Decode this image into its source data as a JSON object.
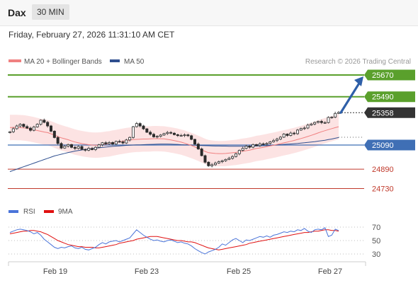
{
  "header": {
    "symbol": "Dax",
    "timeframe": "30 MIN",
    "timestamp": "Friday, February 27, 2026 11:31:10 AM CET"
  },
  "chart_data": [
    {
      "type": "line",
      "panel": "price",
      "legend": [
        {
          "name": "MA 20 + Bollinger Bands",
          "color": "#f08080"
        },
        {
          "name": "MA 50",
          "color": "#2f4f8f"
        }
      ],
      "credit": "Research © 2026 Trading Central",
      "ylim": [
        24650,
        25720
      ],
      "x_ticks": [
        "Feb 19",
        "Feb 23",
        "Feb 25",
        "Feb 27"
      ],
      "levels": [
        {
          "value": 25670,
          "label": "25670",
          "kind": "resistance",
          "color": "#5aa02c"
        },
        {
          "value": 25490,
          "label": "25490",
          "kind": "resistance",
          "color": "#5aa02c"
        },
        {
          "value": 25358,
          "label": "25358",
          "kind": "last",
          "color": "#333333"
        },
        {
          "value": 25090,
          "label": "25090",
          "kind": "pivot",
          "color": "#3f6fb5"
        },
        {
          "value": 24890,
          "label": "24890",
          "kind": "support",
          "color": "#c0392b"
        },
        {
          "value": 24730,
          "label": "24730",
          "kind": "support",
          "color": "#c0392b"
        }
      ],
      "last_price": 25358,
      "target": 25670,
      "closes": [
        25200,
        25225,
        25248,
        25262,
        25243,
        25230,
        25212,
        25240,
        25262,
        25296,
        25278,
        25248,
        25205,
        25152,
        25103,
        25065,
        25080,
        25094,
        25071,
        25062,
        25078,
        25054,
        25047,
        25062,
        25052,
        25071,
        25092,
        25109,
        25100,
        25111,
        25098,
        25120,
        25116,
        25107,
        25132,
        25153,
        25242,
        25268,
        25248,
        25224,
        25196,
        25179,
        25158,
        25162,
        25173,
        25185,
        25194,
        25188,
        25176,
        25168,
        25169,
        25174,
        25167,
        25137,
        25098,
        25058,
        25002,
        24948,
        24918,
        24927,
        24941,
        24952,
        24960,
        24971,
        24980,
        24995,
        25018,
        25046,
        25062,
        25081,
        25072,
        25094,
        25085,
        25100,
        25096,
        25104,
        25117,
        25127,
        25139,
        25155,
        25181,
        25169,
        25189,
        25184,
        25214,
        25227,
        25231,
        25255,
        25264,
        25277,
        25286,
        25276,
        25276,
        25319,
        25321,
        25352,
        25360
      ],
      "ma20": [
        25235,
        25236,
        25235,
        25234,
        25232,
        25228,
        25223,
        25217,
        25210,
        25204,
        25198,
        25193,
        25183,
        25172,
        25160,
        25150,
        25142,
        25134,
        25124,
        25115,
        25108,
        25102,
        25097,
        25093,
        25090,
        25089,
        25090,
        25093,
        25097,
        25100,
        25106,
        25111,
        25117,
        25122,
        25127,
        25131,
        25135,
        25137,
        25138,
        25140,
        25140,
        25141,
        25143,
        25143,
        25142,
        25141,
        25137,
        25132,
        25127,
        25121,
        25114,
        25106,
        25096,
        25086,
        25075,
        25063,
        25050,
        25037,
        25027,
        25023,
        25020,
        25019,
        25019,
        25020,
        25023,
        25026,
        25029,
        25034,
        25039,
        25043,
        25048,
        25055,
        25062,
        25066,
        25071,
        25077,
        25083,
        25089,
        25095,
        25102,
        25108,
        25114,
        25121,
        25128,
        25136,
        25144,
        25152,
        25161,
        25170,
        25180,
        25190,
        25200,
        25209,
        25218,
        25226,
        25234,
        25242
      ],
      "ma50": [
        24870,
        24880,
        24890,
        24900,
        24910,
        24920,
        24930,
        24940,
        24950,
        24960,
        24970,
        24980,
        24990,
        25000,
        25007,
        25014,
        25021,
        25028,
        25034,
        25040,
        25045,
        25049,
        25053,
        25057,
        25061,
        25064,
        25067,
        25070,
        25073,
        25076,
        25079,
        25081,
        25083,
        25085,
        25087,
        25089,
        25090,
        25091,
        25092,
        25093,
        25094,
        25095,
        25096,
        25097,
        25098,
        25098,
        25098,
        25097,
        25096,
        25095,
        25093,
        25092,
        25091,
        25090,
        25088,
        25087,
        25086,
        25085,
        25084,
        25083,
        25082,
        25082,
        25081,
        25081,
        25080,
        25080,
        25080,
        25080,
        25080,
        25080,
        25081,
        25081,
        25082,
        25083,
        25084,
        25085,
        25087,
        25089,
        25091,
        25093,
        25095,
        25097,
        25099,
        25101,
        25103,
        25106,
        25109,
        25112,
        25115,
        25118,
        25122,
        25126,
        25130,
        25135,
        25140,
        25146,
        25152
      ]
    },
    {
      "type": "line",
      "panel": "oscillator",
      "legend": [
        {
          "name": "RSI",
          "color": "#4a74d9"
        },
        {
          "name": "9MA",
          "color": "#e01010"
        }
      ],
      "ylim": [
        20,
        80
      ],
      "y_ticks": [
        70,
        50,
        30
      ],
      "rsi": [
        62,
        64,
        66,
        67,
        66,
        65,
        63,
        60,
        62,
        58,
        52,
        48,
        44,
        40,
        38,
        40,
        39,
        41,
        42,
        39,
        38,
        40,
        37,
        36,
        38,
        40,
        44,
        47,
        45,
        48,
        49,
        50,
        48,
        50,
        52,
        54,
        60,
        66,
        62,
        58,
        55,
        52,
        50,
        51,
        49,
        48,
        50,
        51,
        49,
        47,
        48,
        46,
        45,
        42,
        38,
        35,
        32,
        30,
        33,
        35,
        37,
        40,
        45,
        43,
        47,
        51,
        53,
        50,
        47,
        51,
        50,
        52,
        54,
        56,
        55,
        57,
        55,
        58,
        59,
        61,
        63,
        62,
        64,
        63,
        66,
        65,
        68,
        64,
        62,
        66,
        67,
        66,
        69,
        56,
        58,
        67,
        65
      ],
      "ma9": [
        60,
        61,
        62,
        63,
        64,
        64,
        65,
        65,
        64,
        63,
        61,
        59,
        56,
        53,
        50,
        48,
        46,
        44,
        43,
        42,
        41,
        41,
        40,
        40,
        40,
        39,
        39,
        40,
        41,
        42,
        43,
        44,
        46,
        47,
        48,
        49,
        50,
        52,
        53,
        54,
        55,
        56,
        56,
        56,
        55,
        54,
        53,
        52,
        51,
        50,
        50,
        49,
        48,
        48,
        47,
        45,
        43,
        41,
        39,
        38,
        37,
        36,
        37,
        38,
        39,
        40,
        41,
        42,
        43,
        44,
        46,
        47,
        48,
        49,
        50,
        51,
        52,
        53,
        54,
        55,
        56,
        57,
        58,
        59,
        60,
        61,
        62,
        62,
        63,
        64,
        64,
        65,
        66,
        66,
        65,
        65,
        64
      ]
    }
  ]
}
